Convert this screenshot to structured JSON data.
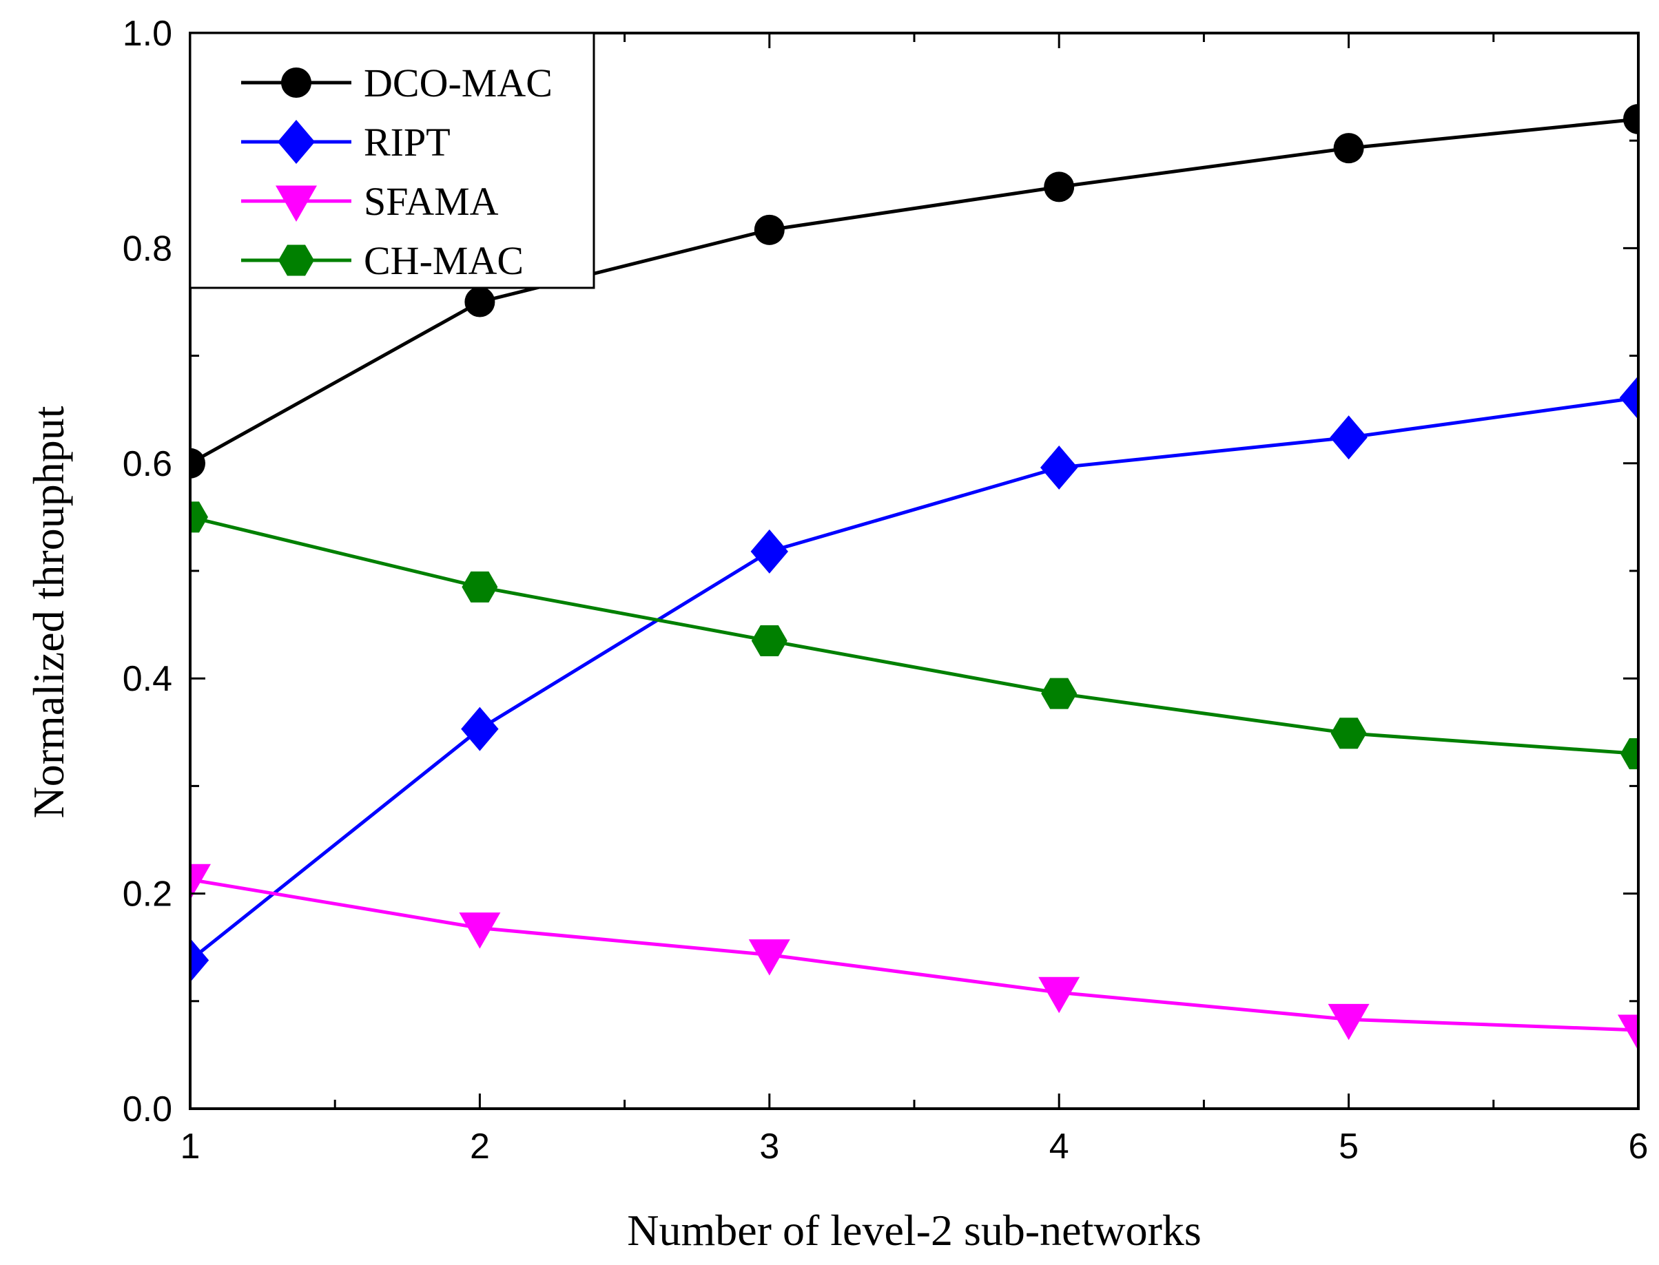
{
  "chart_data": {
    "type": "line",
    "title": "",
    "xlabel": "Number of level-2 sub-networks",
    "ylabel": "Normalized throuphput",
    "xlim": [
      1,
      6
    ],
    "ylim": [
      0.0,
      1.0
    ],
    "x": [
      1,
      2,
      3,
      4,
      5,
      6
    ],
    "x_ticks": [
      "1",
      "2",
      "3",
      "4",
      "5",
      "6"
    ],
    "y_tick_values": [
      0.0,
      0.2,
      0.4,
      0.6,
      0.8,
      1.0
    ],
    "y_ticks": [
      "0.0",
      "0.2",
      "0.4",
      "0.6",
      "0.8",
      "1.0"
    ],
    "grid": false,
    "legend_position": "top-left",
    "series": [
      {
        "name": "DCO-MAC",
        "color": "#000000",
        "marker": "circle",
        "values": [
          0.6,
          0.75,
          0.817,
          0.857,
          0.893,
          0.92
        ]
      },
      {
        "name": "RIPT",
        "color": "#0000ff",
        "marker": "diamond",
        "values": [
          0.138,
          0.353,
          0.518,
          0.596,
          0.624,
          0.661
        ]
      },
      {
        "name": "SFAMA",
        "color": "#ff00ff",
        "marker": "triangle-down",
        "values": [
          0.213,
          0.168,
          0.143,
          0.108,
          0.083,
          0.073
        ]
      },
      {
        "name": "CH-MAC",
        "color": "#008000",
        "marker": "hexagon",
        "values": [
          0.55,
          0.485,
          0.435,
          0.386,
          0.349,
          0.33
        ]
      }
    ]
  }
}
